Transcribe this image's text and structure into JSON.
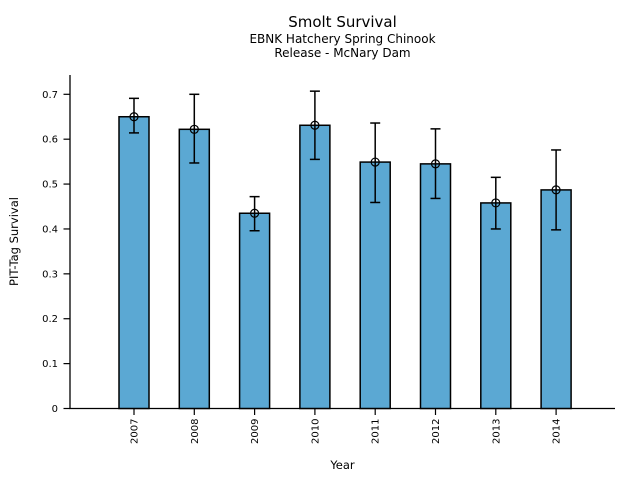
{
  "chart_data": {
    "type": "bar",
    "title": "Smolt Survival",
    "subtitle1": "EBNK Hatchery Spring Chinook",
    "subtitle2": "Release - McNary Dam",
    "xlabel": "Year",
    "ylabel": "PIT-Tag Survival",
    "categories": [
      "2007",
      "2008",
      "2009",
      "2010",
      "2011",
      "2012",
      "2013",
      "2014"
    ],
    "values": [
      0.65,
      0.622,
      0.435,
      0.631,
      0.549,
      0.545,
      0.458,
      0.487
    ],
    "error_low": [
      0.614,
      0.547,
      0.396,
      0.555,
      0.459,
      0.468,
      0.4,
      0.398
    ],
    "error_high": [
      0.691,
      0.7,
      0.472,
      0.707,
      0.636,
      0.623,
      0.515,
      0.576
    ],
    "ylim": [
      0,
      0.743
    ],
    "yticks": [
      0,
      0.1,
      0.2,
      0.3,
      0.4,
      0.5,
      0.6,
      0.7
    ],
    "ytick_labels": [
      "0",
      "0.1",
      "0.2",
      "0.3",
      "0.4",
      "0.5",
      "0.6",
      "0.7"
    ],
    "xtick_rotation_degrees": 90,
    "grid": false,
    "legend": "none",
    "bar_color": "#5BA8D3",
    "edge_color": "#000000",
    "error_color": "#000000",
    "marker": "open-circle",
    "background_color": "#ffffff"
  }
}
